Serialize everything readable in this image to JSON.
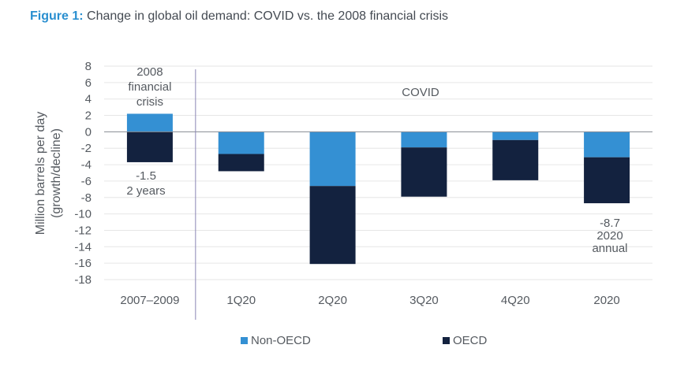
{
  "figure": {
    "label": "Figure 1:",
    "title": "Change in global oil demand: COVID vs. the 2008 financial crisis"
  },
  "chart_data": {
    "type": "bar",
    "stacked": true,
    "ylabel": "Million barrels per day (growth/decline)",
    "ylabel_lines": [
      "Million barrels per day",
      "(growth/decline)"
    ],
    "xlabel": "",
    "ylim": [
      -18,
      8
    ],
    "yticks": [
      8,
      6,
      4,
      2,
      0,
      -2,
      -4,
      -6,
      -8,
      -10,
      -12,
      -14,
      -16,
      -18
    ],
    "grid": true,
    "categories": [
      "2007–2009",
      "1Q20",
      "2Q20",
      "3Q20",
      "4Q20",
      "2020"
    ],
    "series": [
      {
        "name": "Non-OECD",
        "color": "#3490d3",
        "values": [
          2.2,
          -2.7,
          -6.6,
          -1.9,
          -1.0,
          -3.1
        ]
      },
      {
        "name": "OECD",
        "color": "#13223f",
        "values": [
          -3.7,
          -2.1,
          -9.5,
          -6.0,
          -4.9,
          -5.6
        ]
      }
    ],
    "legend": {
      "position": "bottom",
      "items": [
        "Non-OECD",
        "OECD"
      ]
    },
    "annotations": [
      {
        "id": "fin-crisis",
        "lines": [
          "2008",
          "financial",
          "crisis"
        ]
      },
      {
        "id": "covid",
        "lines": [
          "COVID"
        ]
      },
      {
        "id": "crisis-total",
        "lines": [
          "-1.5",
          "2 years"
        ]
      },
      {
        "id": "annual-total",
        "lines": [
          "-8.7",
          "2020",
          "annual"
        ]
      }
    ]
  }
}
